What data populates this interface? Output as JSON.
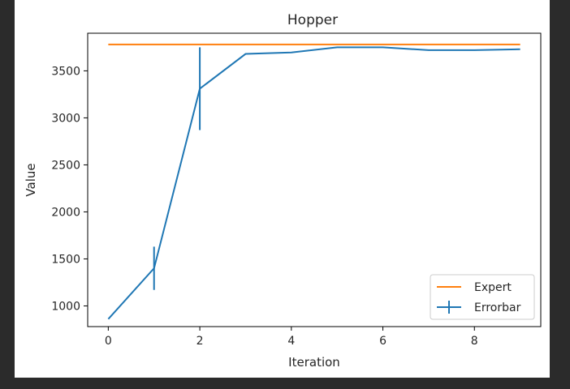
{
  "chart_data": {
    "type": "line",
    "title": "Hopper",
    "xlabel": "Iteration",
    "ylabel": "Value",
    "xlim": [
      -0.45,
      9.45
    ],
    "ylim": [
      780,
      3900
    ],
    "xticks": [
      0,
      2,
      4,
      6,
      8
    ],
    "yticks": [
      1000,
      1500,
      2000,
      2500,
      3000,
      3500
    ],
    "grid": false,
    "legend_position": "bottom-right",
    "colors": {
      "expert": "#ff7f0e",
      "errorbar": "#1f77b4"
    },
    "series": [
      {
        "name": "Expert",
        "x": [
          0,
          9
        ],
        "y": [
          3780,
          3780
        ]
      },
      {
        "name": "Errorbar",
        "x": [
          0,
          1,
          2,
          3,
          4,
          5,
          6,
          7,
          8,
          9
        ],
        "y": [
          860,
          1400,
          3310,
          3680,
          3695,
          3750,
          3750,
          3720,
          3720,
          3730
        ],
        "yerr": [
          0,
          230,
          440,
          0,
          0,
          0,
          0,
          0,
          0,
          0
        ]
      }
    ]
  }
}
